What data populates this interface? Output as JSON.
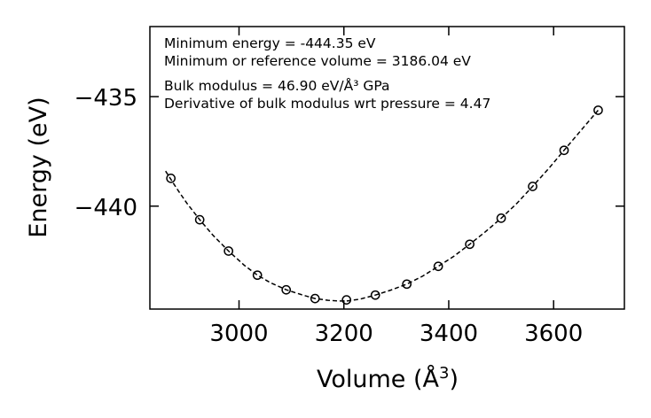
{
  "chart_data": {
    "type": "scatter",
    "title": "",
    "xlabel_main": "Volume (Å",
    "xlabel_sup": "3",
    "xlabel_end": ")",
    "ylabel": "Energy (eV)",
    "xlim": [
      2830,
      3735
    ],
    "ylim": [
      -444.7,
      -431.8
    ],
    "xticks": [
      3000,
      3200,
      3400,
      3600
    ],
    "xtick_labels": [
      "3000",
      "3200",
      "3400",
      "3600"
    ],
    "yticks": [
      -435,
      -440
    ],
    "ytick_labels": [
      "−435",
      "−440"
    ],
    "series": [
      {
        "name": "data",
        "marker": "open-circle",
        "x": [
          2870,
          2925,
          2980,
          3035,
          3090,
          3145,
          3205,
          3260,
          3320,
          3380,
          3440,
          3500,
          3560,
          3620,
          3685
        ],
        "y": [
          -438.73,
          -440.62,
          -442.05,
          -443.15,
          -443.82,
          -444.22,
          -444.28,
          -444.06,
          -443.56,
          -442.75,
          -441.74,
          -440.55,
          -439.1,
          -437.45,
          -435.62
        ]
      }
    ],
    "fit": {
      "name": "fit",
      "style": "dashed",
      "x": [
        2860,
        2880,
        2900,
        2925,
        2950,
        2980,
        3010,
        3035,
        3060,
        3090,
        3120,
        3145,
        3170,
        3190,
        3205,
        3230,
        3260,
        3290,
        3320,
        3350,
        3380,
        3410,
        3440,
        3470,
        3500,
        3530,
        3560,
        3590,
        3620,
        3650,
        3685
      ],
      "y": [
        -438.4,
        -439.15,
        -439.85,
        -440.62,
        -441.32,
        -442.05,
        -442.7,
        -443.15,
        -443.5,
        -443.82,
        -444.05,
        -444.22,
        -444.3,
        -444.33,
        -444.33,
        -444.25,
        -444.06,
        -443.83,
        -443.56,
        -443.2,
        -442.75,
        -442.28,
        -441.74,
        -441.17,
        -440.55,
        -439.87,
        -439.1,
        -438.3,
        -437.45,
        -436.6,
        -435.62
      ]
    },
    "annotations": [
      "Minimum energy = -444.35 eV",
      "Minimum or reference volume = 3186.04 eV",
      "Bulk modulus = 46.90 eV/Å³ GPa",
      "Derivative of bulk modulus wrt pressure = 4.47"
    ],
    "grid": false,
    "legend": "none"
  }
}
